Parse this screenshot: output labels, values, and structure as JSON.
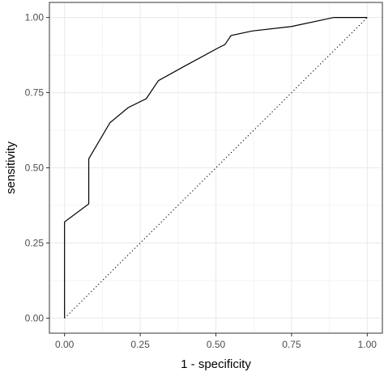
{
  "chart_data": {
    "type": "line",
    "title": "",
    "xlabel": "1 - specificity",
    "ylabel": "sensitivity",
    "xlim": [
      -0.05,
      1.05
    ],
    "ylim": [
      -0.05,
      1.05
    ],
    "x_ticks": [
      "0.00",
      "0.25",
      "0.50",
      "0.75",
      "1.00"
    ],
    "y_ticks": [
      "0.00",
      "0.25",
      "0.50",
      "0.75",
      "1.00"
    ],
    "grid": true,
    "series": [
      {
        "x": [
          0.0,
          0.0,
          0.08,
          0.08,
          0.15,
          0.21,
          0.27,
          0.31,
          0.4,
          0.51,
          0.53,
          0.55,
          0.62,
          0.75,
          0.89,
          1.0
        ],
        "y": [
          0.0,
          0.32,
          0.38,
          0.53,
          0.65,
          0.7,
          0.73,
          0.79,
          0.84,
          0.9,
          0.91,
          0.94,
          0.955,
          0.97,
          1.0,
          1.0
        ],
        "style": "solid"
      },
      {
        "x": [
          0.0,
          1.0
        ],
        "y": [
          0.0,
          1.0
        ],
        "style": "dotted"
      }
    ]
  }
}
